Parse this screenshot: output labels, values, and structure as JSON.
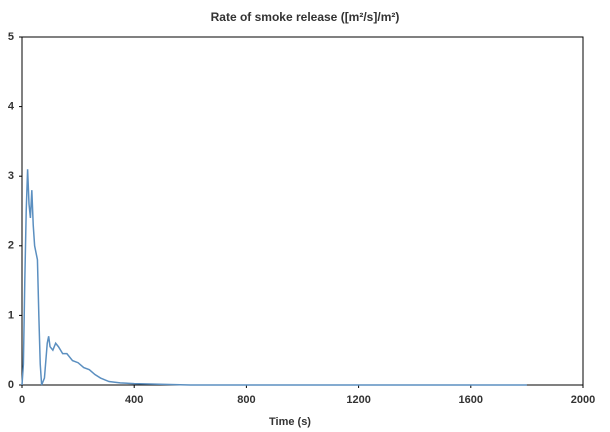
{
  "chart_data": {
    "type": "line",
    "title": "Rate of smoke release ([m²/s]/m²)",
    "x_label": "Time (s)",
    "x": [
      0,
      5,
      10,
      15,
      20,
      25,
      30,
      35,
      40,
      45,
      50,
      55,
      60,
      65,
      70,
      80,
      90,
      95,
      100,
      110,
      120,
      130,
      145,
      160,
      180,
      200,
      220,
      240,
      260,
      280,
      310,
      350,
      400,
      600,
      1000,
      1400,
      1800
    ],
    "series": [
      {
        "color": "#5b8fc0",
        "values": [
          0,
          0.3,
          1.5,
          2.5,
          3.1,
          2.6,
          2.4,
          2.8,
          2.3,
          2.0,
          1.9,
          1.8,
          1.0,
          0.3,
          0,
          0.1,
          0.6,
          0.7,
          0.55,
          0.5,
          0.6,
          0.55,
          0.45,
          0.45,
          0.35,
          0.32,
          0.25,
          0.22,
          0.15,
          0.1,
          0.05,
          0.03,
          0.02,
          0,
          0,
          0,
          0
        ]
      }
    ],
    "xlim": [
      0,
      2000
    ],
    "xticks": [
      0,
      400,
      800,
      1200,
      1600,
      2000
    ],
    "ylim": [
      0,
      5
    ],
    "yticks": [
      0,
      1,
      2,
      3,
      4,
      5
    ]
  }
}
